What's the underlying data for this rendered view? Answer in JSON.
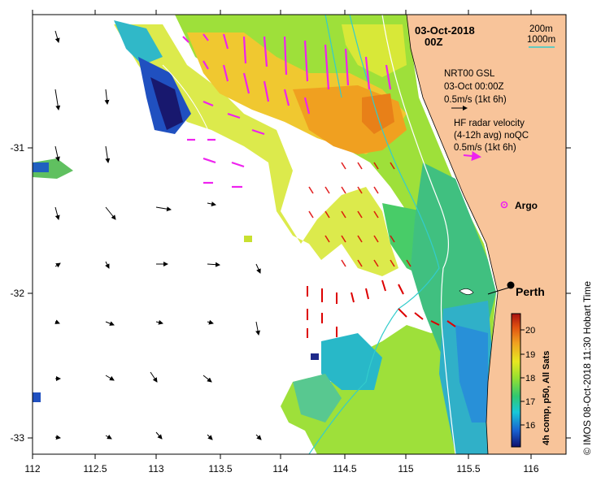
{
  "header": {
    "date": "03-Oct-2018",
    "hour": "00Z",
    "depth_200": "200m",
    "depth_1000": "1000m"
  },
  "legend": {
    "gsl_title": "NRT00 GSL",
    "gsl_time": "03-Oct 00:00Z",
    "gsl_scale": "0.5m/s (1kt 6h)",
    "hf_title": "HF radar velocity",
    "hf_avg": "(4-12h avg) noQC",
    "hf_scale": "0.5m/s (1kt 6h)"
  },
  "markers": {
    "argo": "Argo",
    "city": "Perth"
  },
  "axes": {
    "x_ticks": [
      "112",
      "112.5",
      "113",
      "113.5",
      "114",
      "114.5",
      "115",
      "115.5",
      "116"
    ],
    "y_ticks": [
      "-31",
      "-32",
      "-33"
    ]
  },
  "colorbar": {
    "ticks": [
      "20",
      "19",
      "18",
      "17",
      "16"
    ],
    "label": "4h comp, p50, All Sats"
  },
  "credit": "© IMOS 08-Oct-2018 11:30 Hobart Time",
  "colors": {
    "land": "#f8c49a",
    "hf_arrow": "#ee22ee",
    "red_arrow": "#dd0000",
    "contour_cyan": "#33cccc",
    "contour_white": "#ffffff"
  }
}
